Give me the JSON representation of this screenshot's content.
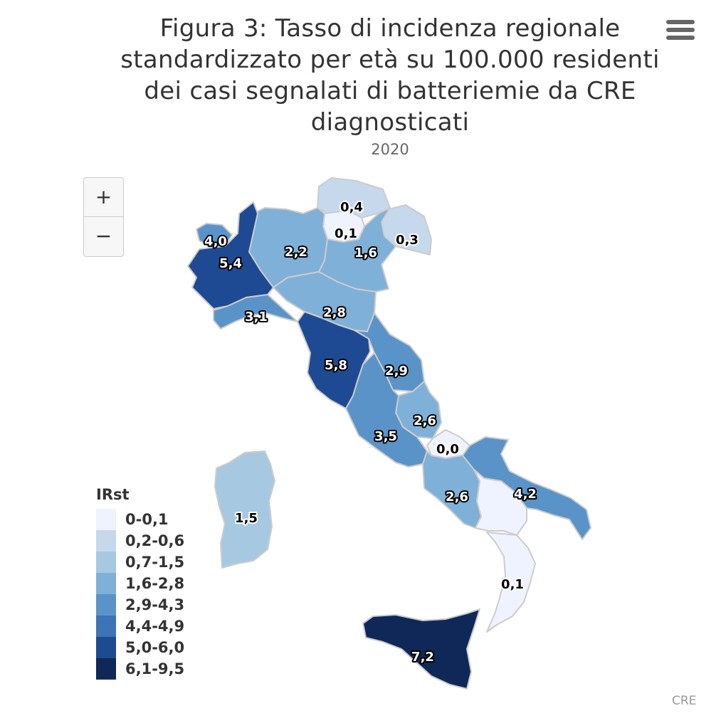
{
  "title_lines": [
    "Figura 3: Tasso di incidenza regionale",
    "standardizzato per età su 100.000 residenti",
    "dei casi segnalati di batteriemie da CRE",
    "diagnosticati"
  ],
  "subtitle": "2020",
  "zoom": {
    "in_label": "+",
    "out_label": "−"
  },
  "menu_icon": "hamburger-menu-icon",
  "credits": "CRE",
  "legend": {
    "title": "IRst",
    "classes": [
      {
        "label": "0-0,1",
        "color": "#eff3ff"
      },
      {
        "label": "0,2-0,6",
        "color": "#c6d8ec"
      },
      {
        "label": "0,7-1,5",
        "color": "#a6c9e1"
      },
      {
        "label": "1,6-2,8",
        "color": "#7fb0d8"
      },
      {
        "label": "2,9-4,3",
        "color": "#5a93c8"
      },
      {
        "label": "4,4-4,9",
        "color": "#3e73b6"
      },
      {
        "label": "5,0-6,0",
        "color": "#1d4a92"
      },
      {
        "label": "6,1-9,5",
        "color": "#0f2858"
      }
    ]
  },
  "chart_data": {
    "type": "choropleth",
    "measure": "IRst",
    "year": "2020",
    "values": [
      {
        "value": "0,4",
        "num": 0.4
      },
      {
        "value": "0,1",
        "num": 0.1
      },
      {
        "value": "0,3",
        "num": 0.3
      },
      {
        "value": "4,0",
        "num": 4.0
      },
      {
        "value": "2,2",
        "num": 2.2
      },
      {
        "value": "1,6",
        "num": 1.6
      },
      {
        "value": "5,4",
        "num": 5.4
      },
      {
        "value": "3,1",
        "num": 3.1
      },
      {
        "value": "2,8",
        "num": 2.8
      },
      {
        "value": "5,8",
        "num": 5.8
      },
      {
        "value": "2,9",
        "num": 2.9
      },
      {
        "value": "2,6",
        "num": 2.6
      },
      {
        "value": "3,5",
        "num": 3.5
      },
      {
        "value": "0,0",
        "num": 0.0
      },
      {
        "value": "1,5",
        "num": 1.5
      },
      {
        "value": "2,6",
        "num": 2.6
      },
      {
        "value": "4,2",
        "num": 4.2
      },
      {
        "value": "0,1",
        "num": 0.1
      },
      {
        "value": "7,2",
        "num": 7.2
      },
      {
        "value": "0,1",
        "num": 0.1
      }
    ]
  }
}
